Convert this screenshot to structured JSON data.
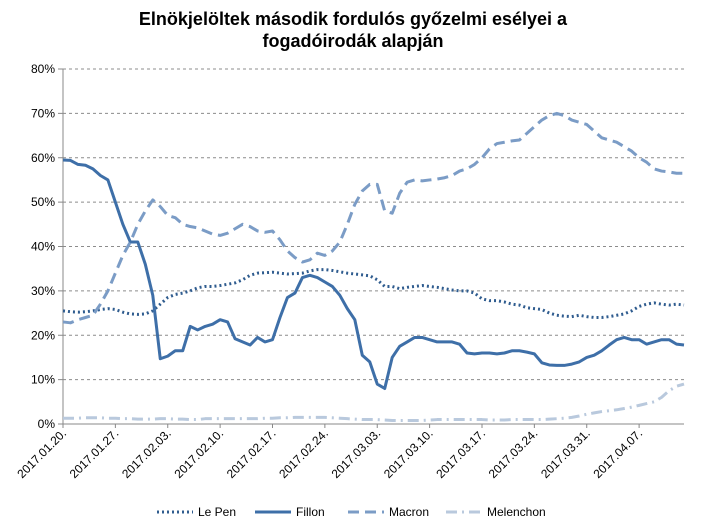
{
  "chart_data": {
    "type": "line",
    "title_lines": [
      "Elnökjelöltek második fordulós győzelmi esélyei a",
      "fogadóirodák alapján"
    ],
    "ylim": [
      0,
      80
    ],
    "ytick_labels": [
      "0%",
      "10%",
      "20%",
      "30%",
      "40%",
      "50%",
      "60%",
      "70%",
      "80%"
    ],
    "xtick_labels": [
      "2017.01.20.",
      "2017.01.27.",
      "2017.02.03.",
      "2017.02.10.",
      "2017.02.17.",
      "2017.02.24.",
      "2017.03.03.",
      "2017.03.10.",
      "2017.03.17.",
      "2017.03.24.",
      "2017.03.31.",
      "2017.04.07."
    ],
    "x": [
      "2017.01.20.",
      "2017.01.21.",
      "2017.01.22.",
      "2017.01.23.",
      "2017.01.24.",
      "2017.01.25.",
      "2017.01.26.",
      "2017.01.27.",
      "2017.01.28.",
      "2017.01.29.",
      "2017.01.30.",
      "2017.01.31.",
      "2017.02.01.",
      "2017.02.02.",
      "2017.02.03.",
      "2017.02.04.",
      "2017.02.05.",
      "2017.02.06.",
      "2017.02.07.",
      "2017.02.08.",
      "2017.02.09.",
      "2017.02.10.",
      "2017.02.11.",
      "2017.02.12.",
      "2017.02.13.",
      "2017.02.14.",
      "2017.02.15.",
      "2017.02.16.",
      "2017.02.17.",
      "2017.02.18.",
      "2017.02.19.",
      "2017.02.20.",
      "2017.02.21.",
      "2017.02.22.",
      "2017.02.23.",
      "2017.02.24.",
      "2017.02.25.",
      "2017.02.26.",
      "2017.02.27.",
      "2017.02.28.",
      "2017.03.01.",
      "2017.03.02.",
      "2017.03.03.",
      "2017.03.04.",
      "2017.03.05.",
      "2017.03.06.",
      "2017.03.07.",
      "2017.03.08.",
      "2017.03.09.",
      "2017.03.10.",
      "2017.03.11.",
      "2017.03.12.",
      "2017.03.13.",
      "2017.03.14.",
      "2017.03.15.",
      "2017.03.16.",
      "2017.03.17.",
      "2017.03.18.",
      "2017.03.19.",
      "2017.03.20.",
      "2017.03.21.",
      "2017.03.22.",
      "2017.03.23.",
      "2017.03.24.",
      "2017.03.25.",
      "2017.03.26.",
      "2017.03.27.",
      "2017.03.28.",
      "2017.03.29.",
      "2017.03.30.",
      "2017.03.31.",
      "2017.04.01.",
      "2017.04.02.",
      "2017.04.03.",
      "2017.04.04.",
      "2017.04.05.",
      "2017.04.06.",
      "2017.04.07.",
      "2017.04.08.",
      "2017.04.09.",
      "2017.04.10.",
      "2017.04.11.",
      "2017.04.12.",
      "2017.04.13."
    ],
    "series": [
      {
        "name": "Le Pen",
        "color": "#2f5c8f",
        "dash": "dotted",
        "values": [
          25.5,
          25.3,
          25.2,
          25.3,
          25.5,
          25.8,
          26.0,
          25.8,
          25.2,
          24.8,
          24.7,
          24.8,
          25.5,
          27.0,
          28.5,
          29.2,
          29.5,
          30.0,
          30.7,
          31.0,
          31.0,
          31.2,
          31.5,
          31.8,
          32.5,
          33.5,
          34.0,
          34.1,
          34.2,
          34.0,
          33.8,
          33.9,
          34.0,
          34.5,
          34.8,
          34.8,
          34.6,
          34.3,
          34.0,
          33.8,
          33.6,
          33.4,
          32.5,
          31.0,
          31.0,
          30.5,
          30.8,
          31.0,
          31.2,
          31.0,
          30.8,
          30.5,
          30.2,
          30.0,
          30.0,
          29.5,
          28.2,
          27.8,
          27.8,
          27.5,
          27.0,
          26.8,
          26.2,
          26.0,
          25.8,
          25.0,
          24.5,
          24.3,
          24.2,
          24.5,
          24.2,
          24.0,
          24.0,
          24.2,
          24.5,
          24.8,
          25.5,
          26.5,
          27.0,
          27.3,
          27.0,
          26.8,
          27.0,
          26.8
        ]
      },
      {
        "name": "Fillon",
        "color": "#3e6fa8",
        "dash": "solid",
        "values": [
          59.5,
          59.4,
          58.5,
          58.3,
          57.5,
          56.0,
          55.0,
          50.0,
          45.0,
          41.0,
          41.0,
          36.0,
          29.0,
          14.7,
          15.3,
          16.5,
          16.5,
          22.0,
          21.2,
          22.0,
          22.5,
          23.5,
          23.0,
          19.2,
          18.5,
          17.8,
          19.5,
          18.5,
          19.0,
          24.0,
          28.5,
          29.5,
          33.0,
          33.5,
          33.0,
          32.0,
          31.0,
          29.0,
          26.0,
          23.5,
          15.5,
          14.0,
          9.0,
          8.0,
          15.0,
          17.5,
          18.5,
          19.5,
          19.5,
          19.0,
          18.5,
          18.5,
          18.5,
          18.0,
          16.0,
          15.8,
          16.0,
          16.0,
          15.8,
          16.0,
          16.5,
          16.5,
          16.2,
          15.8,
          13.8,
          13.3,
          13.2,
          13.2,
          13.5,
          14.0,
          15.0,
          15.5,
          16.5,
          17.8,
          19.0,
          19.5,
          19.0,
          19.0,
          18.0,
          18.5,
          19.0,
          19.0,
          18.0,
          17.8
        ]
      },
      {
        "name": "Macron",
        "color": "#7b9cc6",
        "dash": "dashed",
        "values": [
          23.0,
          22.8,
          23.5,
          24.0,
          24.5,
          27.0,
          30.0,
          34.0,
          38.0,
          41.0,
          45.0,
          48.0,
          50.5,
          49.0,
          47.0,
          46.5,
          45.0,
          44.5,
          44.2,
          43.5,
          42.8,
          42.5,
          43.0,
          44.0,
          45.0,
          44.5,
          43.5,
          43.2,
          43.5,
          41.5,
          39.0,
          37.5,
          36.5,
          37.0,
          38.5,
          38.0,
          39.0,
          41.0,
          45.0,
          49.5,
          52.5,
          54.0,
          54.0,
          48.0,
          47.5,
          52.0,
          54.5,
          55.0,
          54.8,
          55.0,
          55.2,
          55.5,
          56.0,
          57.0,
          57.5,
          58.5,
          60.0,
          62.0,
          63.2,
          63.5,
          63.8,
          64.0,
          65.5,
          67.0,
          68.5,
          69.5,
          70.0,
          69.5,
          68.5,
          68.0,
          67.5,
          66.0,
          64.5,
          64.0,
          63.5,
          62.5,
          61.5,
          60.0,
          59.0,
          57.5,
          57.0,
          56.8,
          56.5,
          56.5
        ]
      },
      {
        "name": "Melenchon",
        "color": "#b9c9dd",
        "dash": "dashdot",
        "values": [
          1.3,
          1.3,
          1.3,
          1.4,
          1.4,
          1.4,
          1.3,
          1.3,
          1.2,
          1.2,
          1.1,
          1.1,
          1.1,
          1.2,
          1.2,
          1.1,
          1.1,
          1.0,
          1.0,
          1.2,
          1.2,
          1.2,
          1.2,
          1.2,
          1.2,
          1.2,
          1.2,
          1.3,
          1.3,
          1.4,
          1.4,
          1.5,
          1.5,
          1.5,
          1.5,
          1.5,
          1.4,
          1.3,
          1.2,
          1.1,
          1.0,
          1.0,
          1.0,
          0.9,
          0.8,
          0.8,
          0.8,
          0.8,
          0.8,
          0.9,
          1.0,
          1.0,
          1.0,
          1.0,
          1.0,
          1.0,
          1.0,
          0.9,
          0.9,
          0.9,
          1.0,
          1.0,
          1.0,
          1.0,
          1.0,
          1.1,
          1.2,
          1.3,
          1.5,
          1.8,
          2.2,
          2.5,
          2.8,
          3.0,
          3.2,
          3.5,
          3.8,
          4.2,
          4.6,
          5.0,
          6.0,
          7.5,
          8.5,
          9.0
        ]
      }
    ],
    "legend": {
      "placement": "bottom",
      "labels": [
        "Le Pen",
        "Fillon",
        "Macron",
        "Melenchon"
      ]
    },
    "grid": {
      "horizontal": true,
      "style": "dashed",
      "color": "#8c8c8c"
    },
    "axis_color": "#888888",
    "text_color": "#000000"
  }
}
